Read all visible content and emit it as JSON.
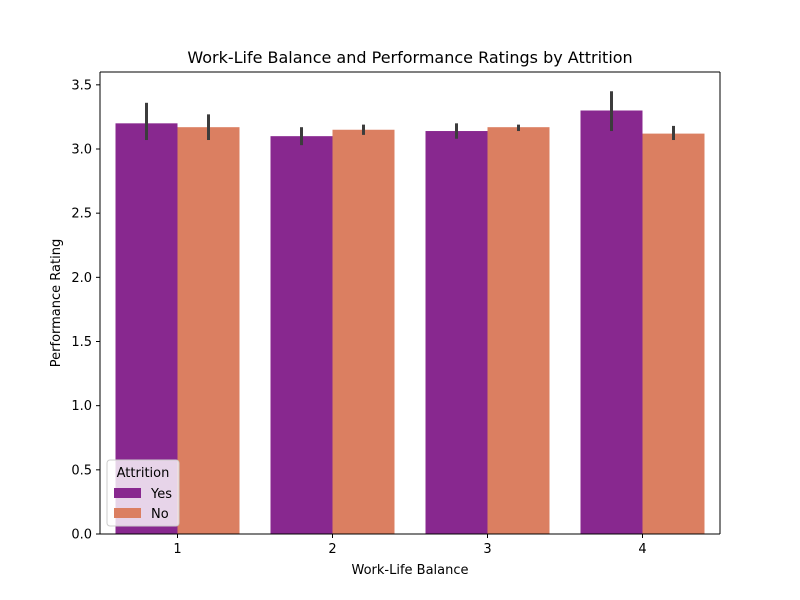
{
  "chart_data": {
    "type": "bar",
    "title": "Work-Life Balance and Performance Ratings by Attrition",
    "xlabel": "Work-Life Balance",
    "ylabel": "Performance Rating",
    "categories": [
      "1",
      "2",
      "3",
      "4"
    ],
    "ylim": [
      0,
      3.6
    ],
    "yticks": [
      "0.0",
      "0.5",
      "1.0",
      "1.5",
      "2.0",
      "2.5",
      "3.0",
      "3.5"
    ],
    "grid": false,
    "legend": {
      "title": "Attrition",
      "placement": "lower-left"
    },
    "series": [
      {
        "name": "Yes",
        "color": "#88288f",
        "values": [
          3.2,
          3.1,
          3.14,
          3.3
        ],
        "error_low": [
          3.07,
          3.03,
          3.08,
          3.14
        ],
        "error_high": [
          3.36,
          3.17,
          3.2,
          3.45
        ]
      },
      {
        "name": "No",
        "color": "#db7f61",
        "values": [
          3.17,
          3.15,
          3.17,
          3.12
        ],
        "error_low": [
          3.07,
          3.11,
          3.14,
          3.07
        ],
        "error_high": [
          3.27,
          3.19,
          3.19,
          3.18
        ]
      }
    ],
    "error_bar_color": "#3c3c3c"
  }
}
